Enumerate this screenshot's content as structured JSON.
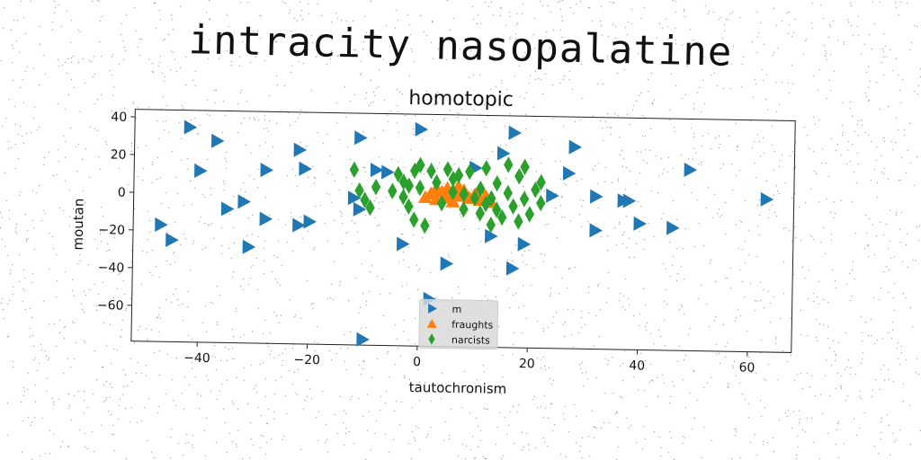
{
  "page": {
    "title": "intracity nasopalatine"
  },
  "colors": {
    "m": "#1f77b4",
    "fraughts": "#ff7f0e",
    "narcists": "#2ca02c"
  },
  "chart_data": {
    "type": "scatter",
    "title": "homotopic",
    "xlabel": "tautochronism",
    "ylabel": "moutan",
    "xlim": [
      -52,
      68
    ],
    "ylim": [
      -79,
      44
    ],
    "xticks": [
      -40,
      -20,
      0,
      20,
      40,
      60
    ],
    "yticks": [
      -60,
      -40,
      -20,
      0,
      20,
      40
    ],
    "grid": false,
    "legend_position": "lower-center",
    "series": [
      {
        "name": "m",
        "marker": "triangle-right",
        "color": "#1f77b4",
        "points": [
          [
            -42,
            35
          ],
          [
            -37,
            28
          ],
          [
            -40,
            12
          ],
          [
            -35,
            -8
          ],
          [
            -32,
            -4
          ],
          [
            -47,
            -17
          ],
          [
            -45,
            -25
          ],
          [
            -31,
            -28
          ],
          [
            -28,
            13
          ],
          [
            -28,
            -13
          ],
          [
            -22,
            24
          ],
          [
            -21,
            14
          ],
          [
            -22,
            -16
          ],
          [
            -20,
            -14
          ],
          [
            -11,
            31
          ],
          [
            -12,
            -1
          ],
          [
            -11,
            -7
          ],
          [
            -10,
            -76
          ],
          [
            -8,
            14
          ],
          [
            -6,
            13
          ],
          [
            -3,
            -25
          ],
          [
            0,
            36
          ],
          [
            2,
            -54
          ],
          [
            5,
            -35
          ],
          [
            10,
            16
          ],
          [
            13,
            -20
          ],
          [
            15,
            24
          ],
          [
            17,
            35
          ],
          [
            17,
            -37
          ],
          [
            19,
            -24
          ],
          [
            24,
            2
          ],
          [
            28,
            28
          ],
          [
            27,
            14
          ],
          [
            32,
            2
          ],
          [
            32,
            -16
          ],
          [
            37,
            0
          ],
          [
            38,
            0
          ],
          [
            40,
            -12
          ],
          [
            46,
            -14
          ],
          [
            49,
            17
          ],
          [
            63,
            2
          ]
        ]
      },
      {
        "name": "fraughts",
        "marker": "triangle-up",
        "color": "#ff7f0e",
        "points": [
          [
            1,
            0
          ],
          [
            2,
            2
          ],
          [
            3,
            -1
          ],
          [
            4,
            3
          ],
          [
            5,
            0
          ],
          [
            5,
            5
          ],
          [
            6,
            -2
          ],
          [
            7,
            1
          ],
          [
            8,
            4
          ],
          [
            9,
            0
          ],
          [
            10,
            2
          ],
          [
            11,
            -1
          ],
          [
            11,
            5
          ],
          [
            12,
            1
          ],
          [
            13,
            -2
          ],
          [
            3,
            5
          ],
          [
            7,
            6
          ]
        ]
      },
      {
        "name": "narcists",
        "marker": "diamond",
        "color": "#2ca02c",
        "points": [
          [
            -12,
            14
          ],
          [
            -11,
            3
          ],
          [
            -10,
            -2
          ],
          [
            -9,
            -6
          ],
          [
            -8,
            5
          ],
          [
            -5,
            3
          ],
          [
            -4,
            12
          ],
          [
            -3,
            8
          ],
          [
            -3,
            0
          ],
          [
            -2,
            -5
          ],
          [
            -1,
            14
          ],
          [
            -1,
            -12
          ],
          [
            0,
            17
          ],
          [
            0,
            5
          ],
          [
            1,
            -15
          ],
          [
            2,
            14
          ],
          [
            3,
            8
          ],
          [
            4,
            -3
          ],
          [
            5,
            15
          ],
          [
            6,
            10
          ],
          [
            7,
            12
          ],
          [
            8,
            -6
          ],
          [
            8,
            2
          ],
          [
            9,
            14
          ],
          [
            10,
            0
          ],
          [
            11,
            5
          ],
          [
            11,
            -8
          ],
          [
            12,
            16
          ],
          [
            12,
            -3
          ],
          [
            13,
            0
          ],
          [
            13,
            -14
          ],
          [
            14,
            8
          ],
          [
            15,
            -10
          ],
          [
            16,
            3
          ],
          [
            16,
            18
          ],
          [
            17,
            -4
          ],
          [
            18,
            12
          ],
          [
            19,
            0
          ],
          [
            19,
            17
          ],
          [
            20,
            -8
          ],
          [
            21,
            5
          ],
          [
            22,
            9
          ],
          [
            22,
            -2
          ],
          [
            6,
            3
          ],
          [
            14,
            -6
          ],
          [
            18,
            -12
          ],
          [
            -2,
            6
          ]
        ]
      }
    ]
  }
}
